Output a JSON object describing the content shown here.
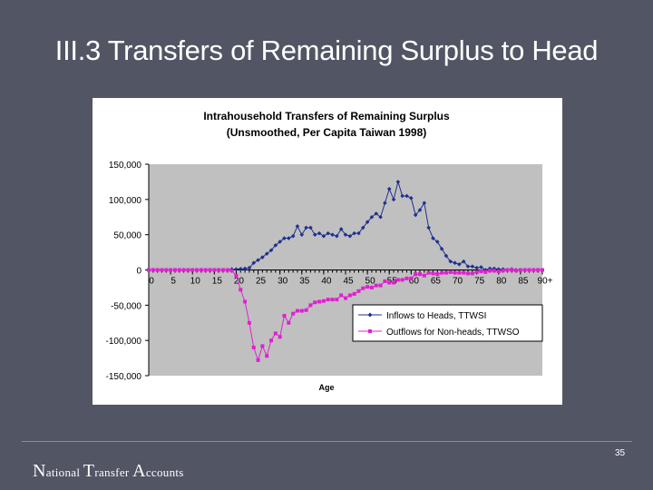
{
  "slide": {
    "title": "III.3 Transfers of Remaining Surplus to Head",
    "footer_words": [
      {
        "cap": "N",
        "rest": "ational"
      },
      {
        "cap": "T",
        "rest": "ransfer"
      },
      {
        "cap": "A",
        "rest": "ccounts"
      }
    ],
    "page_number": "35",
    "background_color": "#525564"
  },
  "chart_data": {
    "type": "line",
    "title": "Intrahousehold Transfers of Remaining Surplus",
    "subtitle": "(Unsmoothed, Per Capita Taiwan 1998)",
    "xlabel": "Age",
    "ylabel": "",
    "ylim": [
      -150000,
      150000
    ],
    "xlim": [
      0,
      90
    ],
    "yticks": [
      150000,
      100000,
      50000,
      0,
      -50000,
      -100000,
      -150000
    ],
    "ytick_labels": [
      "150,000",
      "100,000",
      "50,000",
      "0",
      "-50,000",
      "-100,000",
      "-150,000"
    ],
    "xticks": [
      0,
      5,
      10,
      15,
      20,
      25,
      30,
      35,
      40,
      45,
      50,
      55,
      60,
      65,
      70,
      75,
      80,
      85,
      90
    ],
    "xtick_labels": [
      "0",
      "5",
      "10",
      "15",
      "20",
      "25",
      "30",
      "35",
      "40",
      "45",
      "50",
      "55",
      "60",
      "65",
      "70",
      "75",
      "80",
      "85",
      "90+"
    ],
    "grid": false,
    "plot_background": "#c0c0c0",
    "legend_position": "bottom-right",
    "x": [
      0,
      1,
      2,
      3,
      4,
      5,
      6,
      7,
      8,
      9,
      10,
      11,
      12,
      13,
      14,
      15,
      16,
      17,
      18,
      19,
      20,
      21,
      22,
      23,
      24,
      25,
      26,
      27,
      28,
      29,
      30,
      31,
      32,
      33,
      34,
      35,
      36,
      37,
      38,
      39,
      40,
      41,
      42,
      43,
      44,
      45,
      46,
      47,
      48,
      49,
      50,
      51,
      52,
      53,
      54,
      55,
      56,
      57,
      58,
      59,
      60,
      61,
      62,
      63,
      64,
      65,
      66,
      67,
      68,
      69,
      70,
      71,
      72,
      73,
      74,
      75,
      76,
      77,
      78,
      79,
      80,
      81,
      82,
      83,
      84,
      85,
      86,
      87,
      88,
      89,
      90
    ],
    "series": [
      {
        "name": "Inflows to Heads, TTWSI",
        "color": "#1f2f8f",
        "marker": "diamond",
        "values": [
          0,
          0,
          0,
          0,
          0,
          0,
          0,
          0,
          0,
          0,
          0,
          0,
          0,
          0,
          0,
          0,
          0,
          0,
          0,
          1000,
          1000,
          1500,
          2000,
          3000,
          10000,
          14000,
          18000,
          23000,
          28000,
          35000,
          40000,
          45000,
          45000,
          48000,
          62000,
          50000,
          60000,
          60000,
          50000,
          52000,
          48000,
          52000,
          50000,
          48000,
          58000,
          50000,
          48000,
          52000,
          52000,
          60000,
          68000,
          75000,
          80000,
          75000,
          95000,
          115000,
          100000,
          125000,
          105000,
          105000,
          102000,
          78000,
          85000,
          95000,
          60000,
          45000,
          40000,
          30000,
          20000,
          12000,
          10000,
          8000,
          12000,
          5000,
          5000,
          3000,
          4000,
          0,
          2000,
          2000,
          1000,
          1000,
          0,
          1000,
          0,
          0,
          0,
          0,
          0,
          0,
          0
        ]
      },
      {
        "name": "Outflows for Non-heads, TTWSO",
        "color": "#e020d0",
        "marker": "square",
        "values": [
          0,
          0,
          0,
          0,
          0,
          0,
          0,
          0,
          0,
          0,
          0,
          0,
          0,
          0,
          0,
          0,
          0,
          0,
          0,
          -1000,
          -8000,
          -28000,
          -45000,
          -75000,
          -110000,
          -128000,
          -108000,
          -122000,
          -100000,
          -90000,
          -95000,
          -65000,
          -75000,
          -62000,
          -58000,
          -58000,
          -57000,
          -50000,
          -46000,
          -45000,
          -44000,
          -42000,
          -42000,
          -42000,
          -36000,
          -40000,
          -36000,
          -34000,
          -30000,
          -26000,
          -24000,
          -25000,
          -22000,
          -22000,
          -16000,
          -18000,
          -18000,
          -14000,
          -14000,
          -12000,
          -12000,
          -6000,
          -6000,
          -8000,
          -4000,
          -5000,
          -6000,
          -4000,
          -4000,
          -3000,
          -4000,
          -4000,
          -4000,
          -5000,
          -5000,
          -3000,
          -2000,
          -3000,
          -1000,
          -1000,
          -2000,
          -1000,
          0,
          0,
          -1000,
          0,
          0,
          0,
          0,
          0,
          0
        ]
      }
    ]
  }
}
